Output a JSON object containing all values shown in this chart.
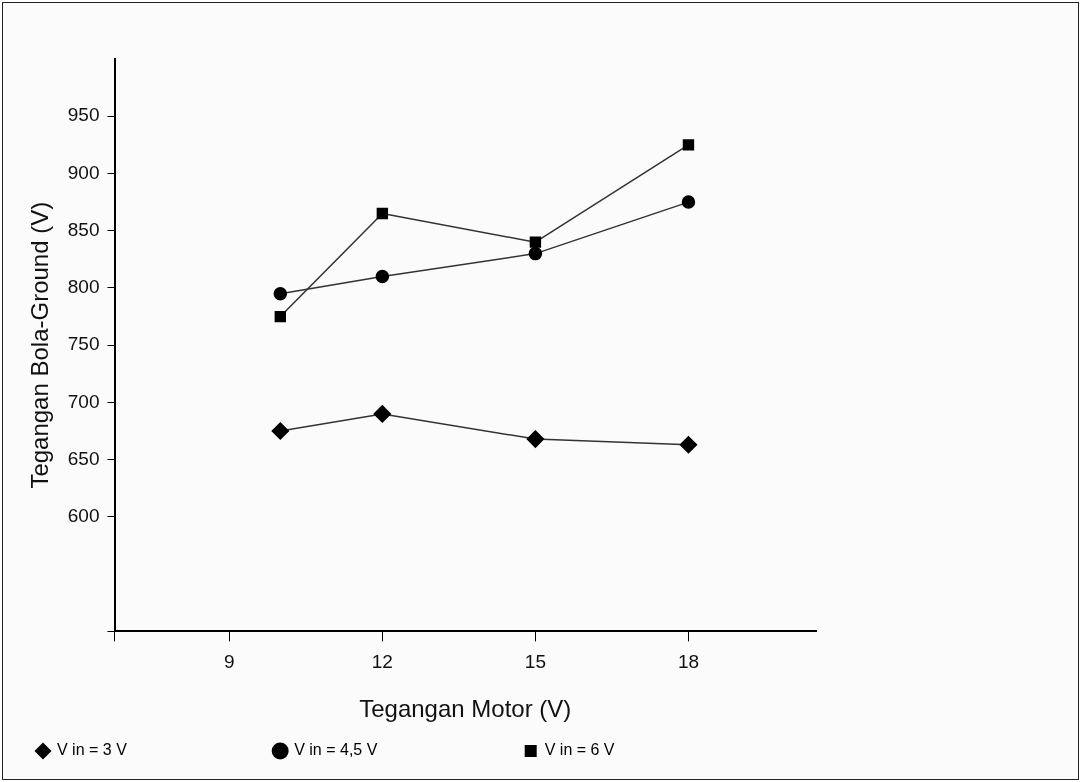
{
  "chart_data": {
    "type": "line",
    "xlabel": "Tegangan Motor (V)",
    "ylabel": "Tegangan Bola-Ground (V)",
    "xlim": [
      6.75,
      20.5
    ],
    "xticks": [
      {
        "value": 6.75,
        "label": null
      },
      9,
      12,
      15,
      18
    ],
    "ylim": [
      500,
      1000
    ],
    "yticks": [
      {
        "value": 500,
        "label": null
      },
      600,
      650,
      700,
      750,
      800,
      850,
      900,
      950
    ],
    "grid": false,
    "legend": "bottom",
    "line_style": "solid",
    "series": [
      {
        "name": "V in = 3 V",
        "color": "#000000",
        "marker": "diamond",
        "x": [
          10,
          12,
          15,
          18
        ],
        "values": [
          675,
          690,
          668,
          663
        ]
      },
      {
        "name": "V in = 4,5 V",
        "color": "#000000",
        "marker": "circle",
        "x": [
          10,
          12,
          15,
          18
        ],
        "values": [
          795,
          810,
          830,
          875
        ]
      },
      {
        "name": "V in = 6 V",
        "color": "#000000",
        "marker": "square",
        "x": [
          10,
          12,
          15,
          18
        ],
        "values": [
          775,
          865,
          840,
          925
        ]
      }
    ]
  }
}
